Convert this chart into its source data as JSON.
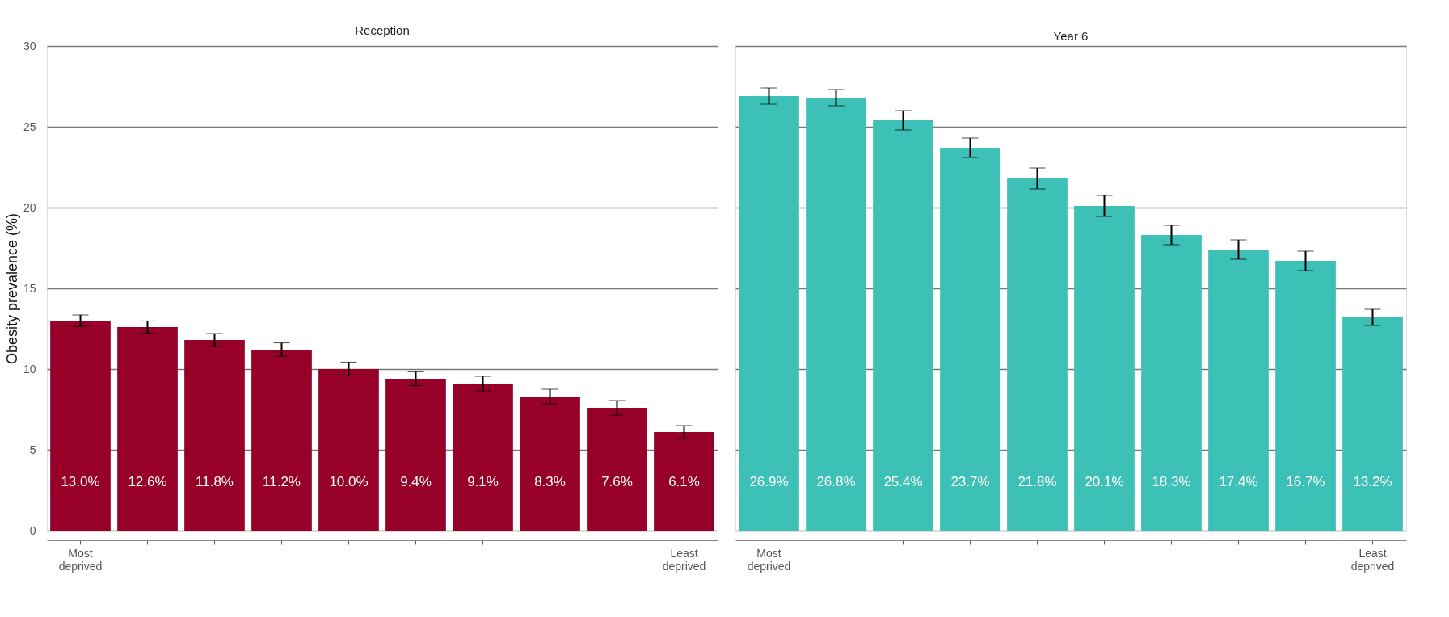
{
  "chart_data": [
    {
      "type": "bar",
      "title": "Reception",
      "ylabel": "Obesity prevalence (%)",
      "categories": [
        "Most deprived",
        null,
        null,
        null,
        null,
        null,
        null,
        null,
        null,
        "Least deprived"
      ],
      "values": [
        13.0,
        12.6,
        11.8,
        11.2,
        10.0,
        9.4,
        9.1,
        8.3,
        7.6,
        6.1
      ],
      "errors": [
        0.35,
        0.38,
        0.4,
        0.42,
        0.43,
        0.43,
        0.45,
        0.45,
        0.45,
        0.4
      ],
      "value_labels": [
        "13.0%",
        "12.6%",
        "11.8%",
        "11.2%",
        "10.0%",
        "9.4%",
        "9.1%",
        "8.3%",
        "7.6%",
        "6.1%"
      ],
      "color": "#970029",
      "ylim": [
        0,
        30
      ],
      "yticks": [
        0,
        5,
        10,
        15,
        20,
        25,
        30
      ],
      "grid": "y"
    },
    {
      "type": "bar",
      "title": "Year 6",
      "categories": [
        "Most deprived",
        null,
        null,
        null,
        null,
        null,
        null,
        null,
        null,
        "Least deprived"
      ],
      "values": [
        26.9,
        26.8,
        25.4,
        23.7,
        21.8,
        20.1,
        18.3,
        17.4,
        16.7,
        13.2
      ],
      "errors": [
        0.5,
        0.5,
        0.6,
        0.6,
        0.65,
        0.65,
        0.6,
        0.6,
        0.6,
        0.5
      ],
      "value_labels": [
        "26.9%",
        "26.8%",
        "25.4%",
        "23.7%",
        "21.8%",
        "20.1%",
        "18.3%",
        "17.4%",
        "16.7%",
        "13.2%"
      ],
      "color": "#3dc1b6",
      "ylim": [
        0,
        30
      ],
      "yticks": [
        0,
        5,
        10,
        15,
        20,
        25,
        30
      ],
      "grid": "y",
      "tick_labels": "x"
    }
  ]
}
